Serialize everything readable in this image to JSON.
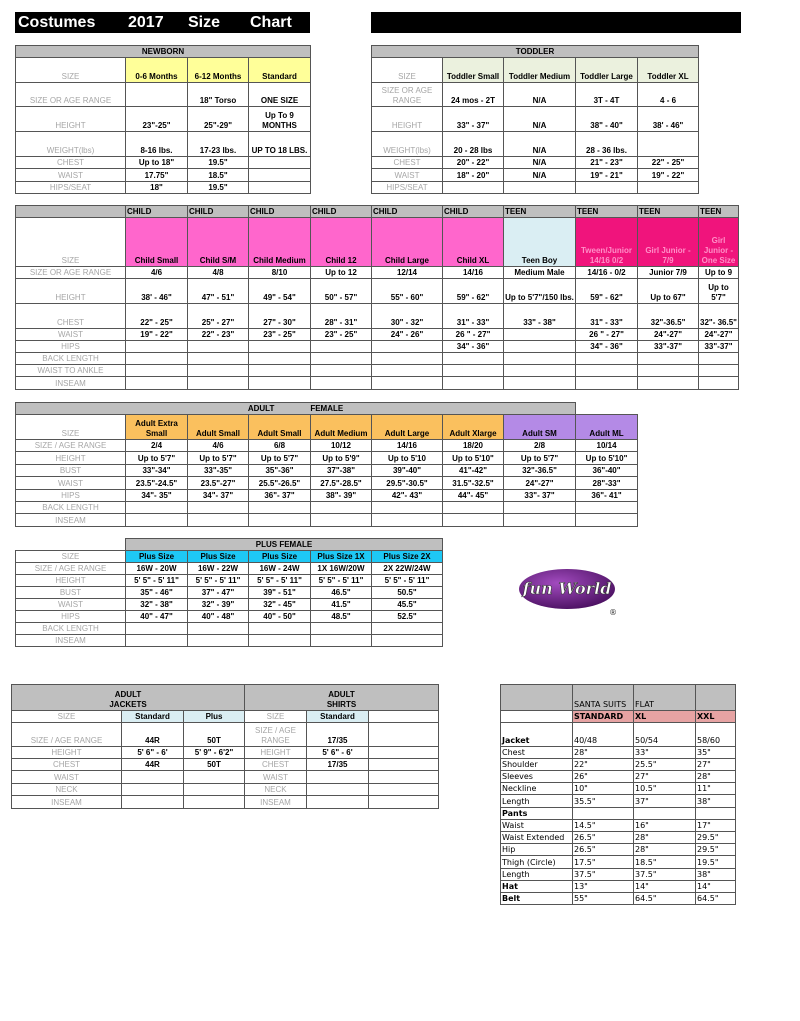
{
  "header": {
    "title_words": [
      "Costumes",
      "2017",
      "Size",
      "Chart"
    ]
  },
  "colors": {
    "header_gray": "#bfbfbf",
    "title_bar": "#000000"
  },
  "newborn": {
    "title": "NEWBORN",
    "size_label": "SIZE",
    "sizes": [
      {
        "label": "0-6 Months",
        "color": "#ffff99"
      },
      {
        "label": "6-12 Months",
        "color": "#ffff99"
      },
      {
        "label": "Standard",
        "color": "#ffff99"
      }
    ],
    "rows": [
      {
        "label": "SIZE OR AGE RANGE",
        "values": [
          "",
          "18\" Torso",
          "ONE SIZE"
        ]
      },
      {
        "label": "HEIGHT",
        "values": [
          "23\"-25\"",
          "25\"-29\"",
          "Up To 9 MONTHS"
        ]
      },
      {
        "label": "WEIGHT(lbs)",
        "values": [
          "8-16 lbs.",
          "17-23 lbs.",
          "UP TO 18 LBS."
        ]
      },
      {
        "label": "CHEST",
        "values": [
          "Up to 18\"",
          "19.5\"",
          ""
        ]
      },
      {
        "label": "WAIST",
        "values": [
          "17.75\"",
          "18.5\"",
          ""
        ]
      },
      {
        "label": "HIPS/SEAT",
        "values": [
          "18\"",
          "19.5\"",
          ""
        ]
      }
    ]
  },
  "toddler": {
    "title": "TODDLER",
    "size_label": "SIZE",
    "sizes": [
      {
        "label": "Toddler Small",
        "color": "#ebf1de"
      },
      {
        "label": "Toddler Medium",
        "color": "#ebf1de"
      },
      {
        "label": "Toddler Large",
        "color": "#ebf1de"
      },
      {
        "label": "Toddler XL",
        "color": "#ebf1de"
      }
    ],
    "rows": [
      {
        "label": "SIZE OR AGE RANGE",
        "values": [
          "24 mos - 2T",
          "N/A",
          "3T - 4T",
          "4 - 6"
        ]
      },
      {
        "label": "HEIGHT",
        "values": [
          "33\" - 37\"",
          "N/A",
          "38\" - 40\"",
          "38' - 46\""
        ]
      },
      {
        "label": "WEIGHT(lbs)",
        "values": [
          "20 - 28 lbs",
          "N/A",
          "28 - 36 lbs.",
          ""
        ]
      },
      {
        "label": "CHEST",
        "values": [
          "20\" - 22\"",
          "N/A",
          "21\" - 23\"",
          "22\" - 25\""
        ]
      },
      {
        "label": "WAIST",
        "values": [
          "18\" - 20\"",
          "N/A",
          "19\" - 21\"",
          "19\" - 22\""
        ]
      },
      {
        "label": "HIPS/SEAT",
        "values": [
          "",
          "",
          "",
          ""
        ]
      }
    ]
  },
  "child": {
    "column_headers": [
      "CHILD",
      "CHILD",
      "CHILD",
      "CHILD",
      "CHILD",
      "CHILD",
      "TEEN",
      "TEEN",
      "TEEN",
      "TEEN"
    ],
    "size_label": "SIZE",
    "sizes": [
      {
        "label": "Child Small",
        "color": "#ff66cc"
      },
      {
        "label": "Child S/M",
        "color": "#ff66cc"
      },
      {
        "label": "Child Medium",
        "color": "#ff66cc"
      },
      {
        "label": "Child 12",
        "color": "#ff66cc"
      },
      {
        "label": "Child Large",
        "color": "#ff66cc"
      },
      {
        "label": "Child XL",
        "color": "#ff66cc"
      },
      {
        "label": "Teen Boy",
        "color": "#daeef3"
      },
      {
        "label": "Tween/Junior 14/16  0/2",
        "color": "#f0147c",
        "text_color": "#ff8fc8"
      },
      {
        "label": "Girl Junior - 7/9",
        "color": "#f0147c",
        "text_color": "#ff8fc8"
      },
      {
        "label": "Girl Junior - One Size",
        "color": "#f0147c",
        "text_color": "#ff8fc8"
      }
    ],
    "rows": [
      {
        "label": "SIZE OR AGE RANGE",
        "values": [
          "4/6",
          "4/8",
          "8/10",
          "Up to 12",
          "12/14",
          "14/16",
          "Medium Male",
          "14/16 - 0/2",
          "Junior 7/9",
          "Up to 9"
        ]
      },
      {
        "label": "HEIGHT",
        "values": [
          "38' - 46\"",
          "47\" - 51\"",
          "49\" - 54\"",
          "50\" - 57\"",
          "55\" - 60\"",
          "59\" - 62\"",
          "Up to 5'7\"/150 lbs.",
          "59\" - 62\"",
          "Up to 67\"",
          "Up to 5'7\""
        ]
      },
      {
        "label": "CHEST",
        "values": [
          "22\" - 25\"",
          "25\" - 27\"",
          "27\" - 30\"",
          "28\" - 31\"",
          "30\" - 32\"",
          "31\" - 33\"",
          "33\" - 38\"",
          "31\" - 33\"",
          "32\"-36.5\"",
          "32\"- 36.5\""
        ]
      },
      {
        "label": "WAIST",
        "values": [
          "19\" - 22\"",
          "22\" - 23\"",
          "23\" - 25\"",
          "23\" - 25\"",
          "24\" - 26\"",
          "26 \" - 27\"",
          "",
          "26 \" - 27\"",
          "24\"-27\"",
          "24\"-27\""
        ]
      },
      {
        "label": "HIPS",
        "values": [
          "",
          "",
          "",
          "",
          "",
          "34\" - 36\"",
          "",
          "34\" - 36\"",
          "33\"-37\"",
          "33\"-37\""
        ]
      },
      {
        "label": "BACK LENGTH",
        "values": [
          "",
          "",
          "",
          "",
          "",
          "",
          "",
          "",
          "",
          ""
        ]
      },
      {
        "label": "WAIST TO ANKLE",
        "values": [
          "",
          "",
          "",
          "",
          "",
          "",
          "",
          "",
          "",
          ""
        ]
      },
      {
        "label": "INSEAM",
        "values": [
          "",
          "",
          "",
          "",
          "",
          "",
          "",
          "",
          "",
          ""
        ]
      }
    ]
  },
  "adult_female": {
    "title_parts": [
      "ADULT",
      "FEMALE"
    ],
    "size_label": "SIZE",
    "sizes": [
      {
        "label": "Adult Extra Small",
        "color": "#fac05e"
      },
      {
        "label": "Adult Small",
        "color": "#fac05e"
      },
      {
        "label": "Adult Small",
        "color": "#fac05e"
      },
      {
        "label": "Adult Medium",
        "color": "#fac05e"
      },
      {
        "label": "Adult Large",
        "color": "#fac05e"
      },
      {
        "label": "Adult Xlarge",
        "color": "#fac05e"
      },
      {
        "label": "Adult SM",
        "color": "#b48ae6"
      },
      {
        "label": "Adult ML",
        "color": "#b48ae6"
      }
    ],
    "rows": [
      {
        "label": "SIZE / AGE RANGE",
        "values": [
          "2/4",
          "4/6",
          "6/8",
          "10/12",
          "14/16",
          "18/20",
          "2/8",
          "10/14"
        ]
      },
      {
        "label": "HEIGHT",
        "values": [
          "Up to 5'7\"",
          "Up to 5'7\"",
          "Up to 5'7\"",
          "Up to 5'9\"",
          "Up to 5'10",
          "Up to 5'10\"",
          "Up to 5'7\"",
          "Up to 5'10\""
        ]
      },
      {
        "label": "BUST",
        "values": [
          "33\"-34\"",
          "33\"-35\"",
          "35\"-36\"",
          "37\"-38\"",
          "39\"-40\"",
          "41\"-42\"",
          "32\"-36.5\"",
          "36\"-40\""
        ]
      },
      {
        "label": "WAIST",
        "values": [
          "23.5\"-24.5\"",
          "23.5\"-27\"",
          "25.5\"-26.5\"",
          "27.5\"-28.5\"",
          "29.5\"-30.5\"",
          "31.5\"-32.5\"",
          "24\"-27\"",
          "28\"-33\""
        ]
      },
      {
        "label": "HIPS",
        "values": [
          "34\"- 35\"",
          "34\"- 37\"",
          "36\"- 37\"",
          "38\"- 39\"",
          "42\"- 43\"",
          "44\"- 45\"",
          "33\"- 37\"",
          "36\"- 41\""
        ]
      },
      {
        "label": "BACK LENGTH",
        "values": [
          "",
          "",
          "",
          "",
          "",
          "",
          "",
          ""
        ]
      },
      {
        "label": "INSEAM",
        "values": [
          "",
          "",
          "",
          "",
          "",
          "",
          "",
          ""
        ]
      }
    ]
  },
  "plus_female": {
    "title": "PLUS FEMALE",
    "size_label": "SIZE",
    "sizes": [
      {
        "label": "Plus Size",
        "color": "#1ec8f5"
      },
      {
        "label": "Plus Size",
        "color": "#1ec8f5"
      },
      {
        "label": "Plus Size",
        "color": "#1ec8f5"
      },
      {
        "label": "Plus Size 1X",
        "color": "#1ec8f5"
      },
      {
        "label": "Plus Size 2X",
        "color": "#1ec8f5"
      }
    ],
    "rows": [
      {
        "label": "SIZE / AGE RANGE",
        "values": [
          "16W - 20W",
          "16W - 22W",
          "16W - 24W",
          "1X 16W/20W",
          "2X 22W/24W"
        ]
      },
      {
        "label": "HEIGHT",
        "values": [
          "5' 5\" - 5' 11\"",
          "5' 5\" - 5' 11\"",
          "5' 5\" - 5' 11\"",
          "5' 5\" - 5' 11\"",
          "5' 5\" - 5' 11\""
        ]
      },
      {
        "label": "BUST",
        "values": [
          "35\" - 46\"",
          "37\" - 47\"",
          "39\" - 51\"",
          "46.5\"",
          "50.5\""
        ]
      },
      {
        "label": "WAIST",
        "values": [
          "32\" - 38\"",
          "32\" - 39\"",
          "32\" - 45\"",
          "41.5\"",
          "45.5\""
        ]
      },
      {
        "label": "HIPS",
        "values": [
          "40\" - 47\"",
          "40\" - 48\"",
          "40\" - 50\"",
          "48.5\"",
          "52.5\""
        ]
      },
      {
        "label": "BACK LENGTH",
        "values": [
          "",
          "",
          "",
          "",
          ""
        ]
      },
      {
        "label": "INSEAM",
        "values": [
          "",
          "",
          "",
          "",
          ""
        ]
      }
    ]
  },
  "logo": {
    "text": "fun World",
    "mark": "®",
    "color": "#5a1f6e"
  },
  "jackets": {
    "title": "ADULT\nJACKETS",
    "size_label": "SIZE",
    "sizes": [
      {
        "label": "Standard",
        "color": "#daeef3"
      },
      {
        "label": "Plus",
        "color": "#daeef3"
      }
    ],
    "rows": [
      {
        "label": "SIZE / AGE RANGE",
        "values": [
          "44R",
          "50T"
        ]
      },
      {
        "label": "HEIGHT",
        "values": [
          "5' 6\" - 6'",
          "5' 9\" - 6'2\""
        ]
      },
      {
        "label": "CHEST",
        "values": [
          "44R",
          "50T"
        ]
      },
      {
        "label": "WAIST",
        "values": [
          "",
          ""
        ]
      },
      {
        "label": "NECK",
        "values": [
          "",
          ""
        ]
      },
      {
        "label": "INSEAM",
        "values": [
          "",
          ""
        ]
      }
    ]
  },
  "shirts": {
    "title": "ADULT\nSHIRTS",
    "size_label": "SIZE",
    "sizes": [
      {
        "label": "Standard",
        "color": "#daeef3"
      },
      {
        "label": "",
        "color": "#ffffff"
      }
    ],
    "rows": [
      {
        "label": "SIZE / AGE RANGE",
        "values": [
          "17/35",
          ""
        ]
      },
      {
        "label": "HEIGHT",
        "values": [
          "5' 6\" - 6'",
          ""
        ]
      },
      {
        "label": "CHEST",
        "values": [
          "17/35",
          ""
        ]
      },
      {
        "label": "WAIST",
        "values": [
          "",
          ""
        ]
      },
      {
        "label": "NECK",
        "values": [
          "",
          ""
        ]
      },
      {
        "label": "INSEAM",
        "values": [
          "",
          ""
        ]
      }
    ]
  },
  "santa": {
    "column_headers": [
      "SANTA SUITS",
      "FLAT",
      ""
    ],
    "size_label": "",
    "sizes": [
      {
        "label": "STANDARD",
        "color": "#e6a3a3"
      },
      {
        "label": "XL",
        "color": "#e6a3a3"
      },
      {
        "label": "XXL",
        "color": "#e6a3a3"
      }
    ],
    "rows": [
      {
        "label": "Jacket",
        "bold": true,
        "values": [
          "40/48",
          "50/54",
          "58/60"
        ]
      },
      {
        "label": "Chest",
        "values": [
          "28\"",
          "33\"",
          "35\""
        ]
      },
      {
        "label": "Shoulder",
        "values": [
          "22\"",
          "25.5\"",
          "27\""
        ]
      },
      {
        "label": "Sleeves",
        "values": [
          "26\"",
          "27\"",
          "28\""
        ]
      },
      {
        "label": "Neckline",
        "values": [
          "10\"",
          "10.5\"",
          "11\""
        ]
      },
      {
        "label": "Length",
        "values": [
          "35.5\"",
          "37\"",
          "38\""
        ]
      },
      {
        "label": "Pants",
        "bold": true,
        "values": [
          "",
          "",
          ""
        ]
      },
      {
        "label": "Waist",
        "values": [
          "14.5\"",
          "16\"",
          "17\""
        ]
      },
      {
        "label": "Waist Extended",
        "values": [
          "26.5\"",
          "28\"",
          "29.5\""
        ]
      },
      {
        "label": "Hip",
        "values": [
          "26.5\"",
          "28\"",
          "29.5\""
        ]
      },
      {
        "label": "Thigh (Circle)",
        "values": [
          "17.5\"",
          "18.5\"",
          "19.5\""
        ]
      },
      {
        "label": "Length",
        "values": [
          "37.5\"",
          "37.5\"",
          "38\""
        ]
      },
      {
        "label": "Hat",
        "bold": true,
        "values": [
          "13\"",
          "14\"",
          "14\""
        ]
      },
      {
        "label": "Belt",
        "bold": true,
        "values": [
          "55\"",
          "64.5\"",
          "64.5\""
        ]
      }
    ]
  }
}
